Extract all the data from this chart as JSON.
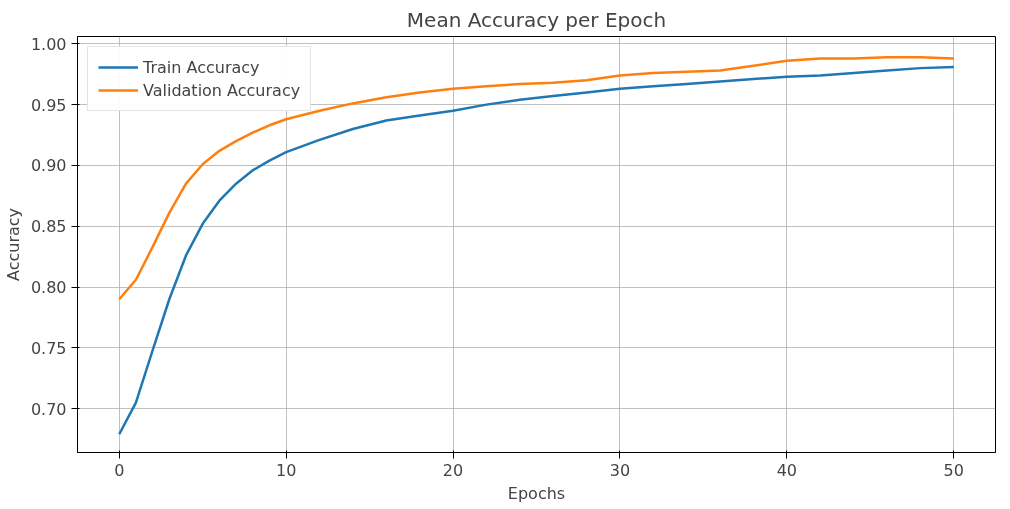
{
  "chart_data": {
    "type": "line",
    "title": "Mean Accuracy per Epoch",
    "xlabel": "Epochs",
    "ylabel": "Accuracy",
    "x": [
      0,
      1,
      2,
      3,
      4,
      5,
      6,
      7,
      8,
      9,
      10,
      12,
      14,
      16,
      18,
      20,
      22,
      24,
      26,
      28,
      30,
      32,
      34,
      36,
      38,
      40,
      42,
      44,
      46,
      48,
      50
    ],
    "series": [
      {
        "name": "Train Accuracy",
        "color": "#1f77b4",
        "values": [
          0.679,
          0.705,
          0.748,
          0.79,
          0.826,
          0.852,
          0.871,
          0.885,
          0.896,
          0.904,
          0.911,
          0.921,
          0.93,
          0.937,
          0.941,
          0.945,
          0.95,
          0.954,
          0.957,
          0.96,
          0.963,
          0.965,
          0.967,
          0.969,
          0.971,
          0.973,
          0.974,
          0.976,
          0.978,
          0.98,
          0.981
        ]
      },
      {
        "name": "Validation Accuracy",
        "color": "#ff7f0e",
        "values": [
          0.79,
          0.806,
          0.833,
          0.861,
          0.885,
          0.901,
          0.912,
          0.92,
          0.927,
          0.933,
          0.938,
          0.945,
          0.951,
          0.956,
          0.96,
          0.963,
          0.965,
          0.967,
          0.968,
          0.97,
          0.974,
          0.976,
          0.977,
          0.978,
          0.982,
          0.986,
          0.988,
          0.988,
          0.989,
          0.989,
          0.988
        ]
      }
    ],
    "xlim": [
      -2.5,
      52.5
    ],
    "xticks": [
      0,
      10,
      20,
      30,
      40,
      50
    ],
    "ylim": [
      0.664,
      1.006
    ],
    "yticks": [
      {
        "value": 0.7,
        "label": "0.70"
      },
      {
        "value": 0.75,
        "label": "0.75"
      },
      {
        "value": 0.8,
        "label": "0.80"
      },
      {
        "value": 0.85,
        "label": "0.85"
      },
      {
        "value": 0.9,
        "label": "0.90"
      },
      {
        "value": 0.95,
        "label": "0.95"
      },
      {
        "value": 1.0,
        "label": "1.00"
      }
    ],
    "grid": true,
    "legend": "top left",
    "marker": "none",
    "line_style": "solid"
  }
}
